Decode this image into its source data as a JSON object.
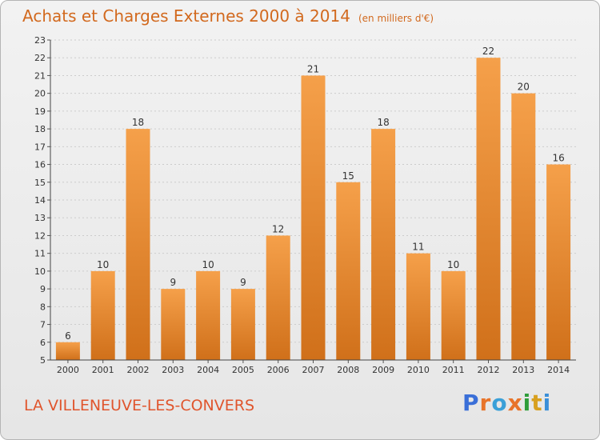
{
  "header": {
    "title": "Achats et Charges Externes 2000 à 2014",
    "unit": "(en milliers d'€)"
  },
  "footer": {
    "city": "LA VILLENEUVE-LES-CONVERS",
    "logo": [
      "P",
      "r",
      "o",
      "x",
      "i",
      "t",
      "i"
    ]
  },
  "colors": {
    "bar_light": "#f5a04a",
    "bar_dark": "#d0701a",
    "title": "#d2691e",
    "city": "#e0552d",
    "logo": [
      "#3a6fd8",
      "#e8742a",
      "#3aa0d8",
      "#e8742a",
      "#2f9d3a",
      "#d8a020",
      "#3a8fd8"
    ]
  },
  "chart_data": {
    "type": "bar",
    "categories": [
      "2000",
      "2001",
      "2002",
      "2003",
      "2004",
      "2005",
      "2006",
      "2007",
      "2008",
      "2009",
      "2010",
      "2011",
      "2012",
      "2013",
      "2014"
    ],
    "values": [
      6,
      10,
      18,
      9,
      10,
      9,
      12,
      21,
      15,
      18,
      11,
      10,
      22,
      20,
      16
    ],
    "ylim": [
      5,
      23
    ],
    "yticks": [
      5,
      6,
      7,
      8,
      9,
      10,
      11,
      12,
      13,
      14,
      15,
      16,
      17,
      18,
      19,
      20,
      21,
      22,
      23
    ],
    "grid": true
  }
}
